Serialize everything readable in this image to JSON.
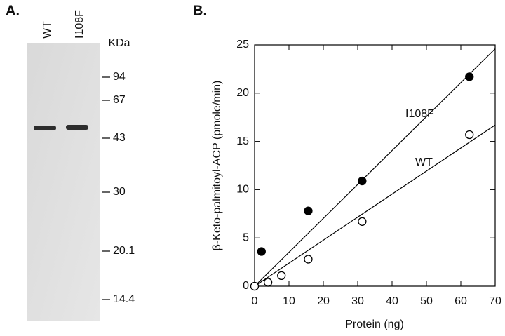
{
  "panel_a": {
    "label": "A.",
    "lanes": [
      "WT",
      "I108F"
    ],
    "unit": "KDa",
    "markers": [
      94,
      67,
      43,
      30,
      20.1,
      14.4
    ]
  },
  "chart_data": {
    "type": "scatter",
    "panel_label": "B.",
    "xlabel": "Protein (ng)",
    "ylabel": "β-Keto-palmitoyl-ACP (pmole/min)",
    "xlim": [
      0,
      70
    ],
    "ylim": [
      0,
      25
    ],
    "xticks": [
      0,
      10,
      20,
      30,
      40,
      50,
      60,
      70
    ],
    "yticks": [
      0,
      5,
      10,
      15,
      20,
      25
    ],
    "series": [
      {
        "name": "I108F",
        "color": "#000000",
        "marker": "filled",
        "x": [
          0,
          2,
          15.6,
          31.3,
          62.5
        ],
        "values": [
          0,
          3.6,
          7.8,
          10.9,
          21.7
        ],
        "fit": {
          "x": [
            0,
            70
          ],
          "values": [
            0,
            24.6
          ]
        }
      },
      {
        "name": "WT",
        "color": "#000000",
        "marker": "open",
        "x": [
          0,
          3.9,
          7.8,
          15.6,
          31.3,
          62.5
        ],
        "values": [
          0,
          0.4,
          1.1,
          2.8,
          6.7,
          15.7
        ],
        "fit": {
          "x": [
            0,
            70
          ],
          "values": [
            0,
            16.7
          ]
        }
      }
    ]
  }
}
